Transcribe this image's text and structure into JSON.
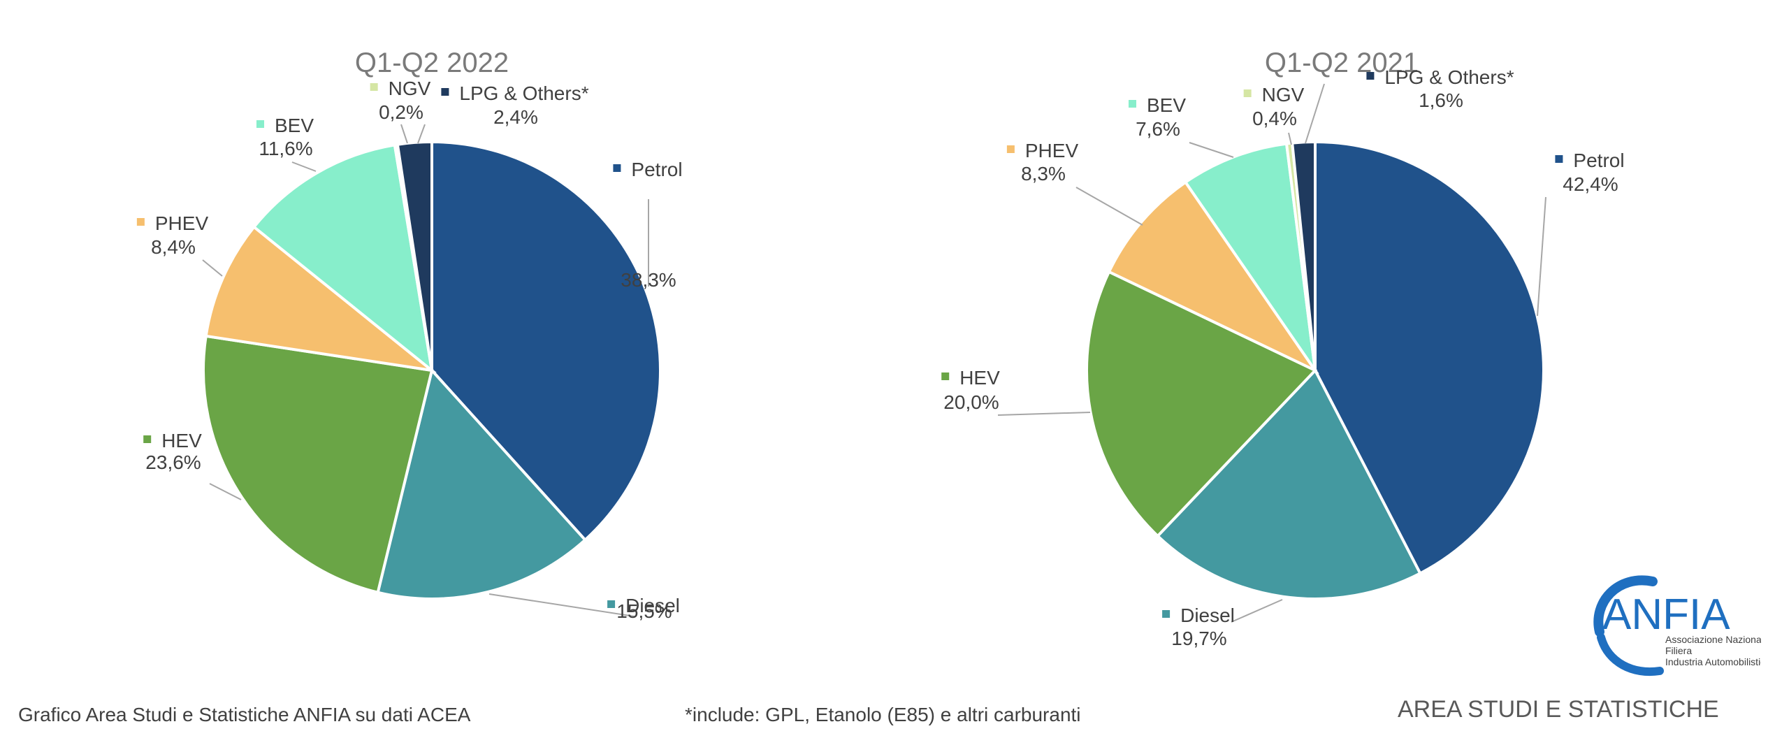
{
  "chart_data": [
    {
      "type": "pie",
      "title": "Q1-Q2 2022",
      "slices": [
        {
          "name": "Petrol",
          "value": 38.3,
          "label": "38,3%",
          "color": "#20528b"
        },
        {
          "name": "Diesel",
          "value": 15.5,
          "label": "15,5%",
          "color": "#4499a0"
        },
        {
          "name": "HEV",
          "value": 23.6,
          "label": "23,6%",
          "color": "#6aa546"
        },
        {
          "name": "PHEV",
          "value": 8.4,
          "label": "8,4%",
          "color": "#f6bf6e"
        },
        {
          "name": "BEV",
          "value": 11.6,
          "label": "11,6%",
          "color": "#87eecb"
        },
        {
          "name": "NGV",
          "value": 0.2,
          "label": "0,2%",
          "color": "#d5e6a4"
        },
        {
          "name": "LPG & Others*",
          "value": 2.4,
          "label": "2,4%",
          "color": "#1f3a5e"
        }
      ]
    },
    {
      "type": "pie",
      "title": "Q1-Q2 2021",
      "slices": [
        {
          "name": "Petrol",
          "value": 42.4,
          "label": "42,4%",
          "color": "#20528b"
        },
        {
          "name": "Diesel",
          "value": 19.7,
          "label": "19,7%",
          "color": "#4499a0"
        },
        {
          "name": "HEV",
          "value": 20.0,
          "label": "20,0%",
          "color": "#6aa546"
        },
        {
          "name": "PHEV",
          "value": 8.3,
          "label": "8,3%",
          "color": "#f6bf6e"
        },
        {
          "name": "BEV",
          "value": 7.6,
          "label": "7,6%",
          "color": "#87eecb"
        },
        {
          "name": "NGV",
          "value": 0.4,
          "label": "0,4%",
          "color": "#d5e6a4"
        },
        {
          "name": "LPG & Others*",
          "value": 1.6,
          "label": "1,6%",
          "color": "#1f3a5e"
        }
      ]
    }
  ],
  "footer": {
    "source": "Grafico Area Studi e Statistiche ANFIA su dati ACEA",
    "note": "*include: GPL, Etanolo (E85) e altri carburanti"
  },
  "logo": {
    "name": "ANFIA",
    "line1": "Associazione Nazionale",
    "line2": "Filiera",
    "line3": "Industria Automobilistica",
    "color": "#1f6fc0"
  },
  "tagline": "AREA STUDI E STATISTICHE"
}
